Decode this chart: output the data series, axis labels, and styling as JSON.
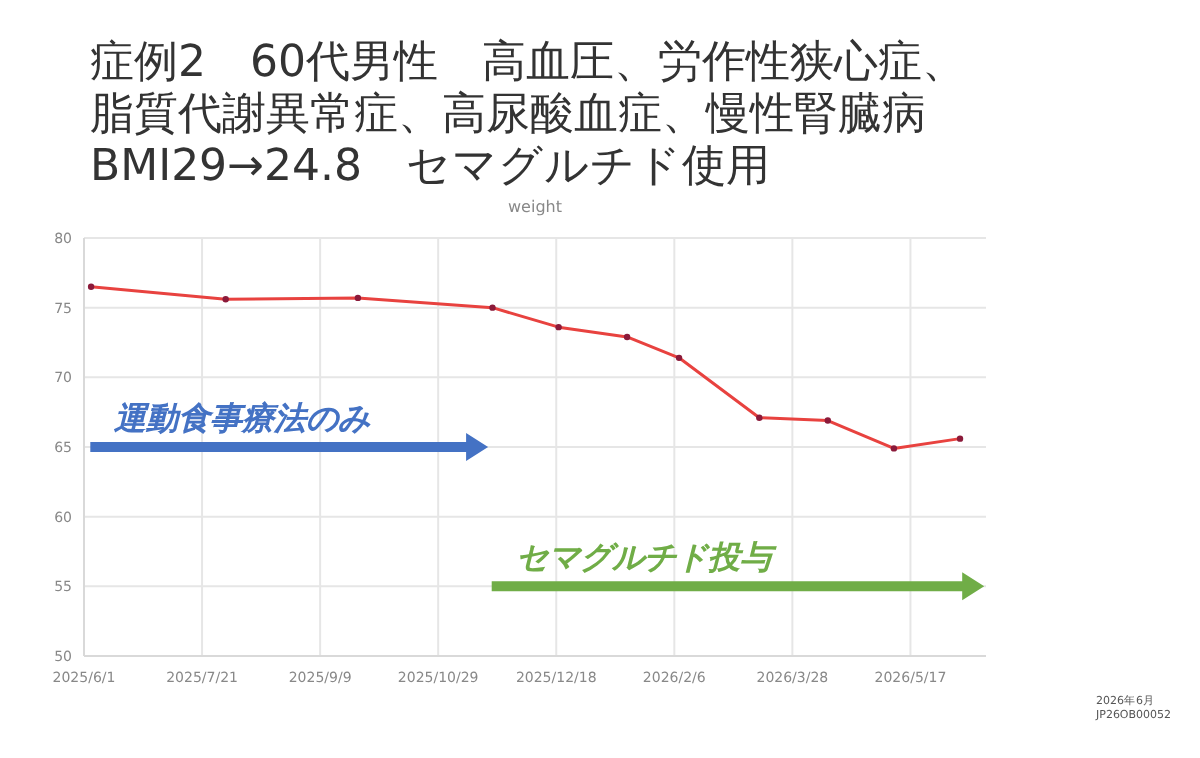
{
  "chart_data": {
    "type": "line",
    "title": "症例2　60代男性　高血圧、労作性狭心症、脂質代謝異常症、高尿酸血症、慢性腎臓病BMI29→24.8　セマグルチド使用",
    "subtitle": "weight",
    "x": [
      "2025-06-04",
      "2025-07-31",
      "2025-09-25",
      "2025-11-21",
      "2025-12-19",
      "2026-01-17",
      "2026-02-08",
      "2026-03-14",
      "2026-04-12",
      "2026-05-10",
      "2026-06-07"
    ],
    "series": [
      {
        "color": "#e8423f",
        "values": [
          76.5,
          75.6,
          75.7,
          75.0,
          73.6,
          72.9,
          71.4,
          67.1,
          66.9,
          64.9,
          65.6
        ]
      }
    ],
    "xlim": [
      "2025-06-01",
      "2026-06-18"
    ],
    "xticks": [
      {
        "value": "2025-06-01",
        "label": "2025/6/1"
      },
      {
        "value": "2025-07-21",
        "label": "2025/7/21"
      },
      {
        "value": "2025-09-09",
        "label": "2025/9/9"
      },
      {
        "value": "2025-10-29",
        "label": "2025/10/29"
      },
      {
        "value": "2025-12-18",
        "label": "2025/12/18"
      },
      {
        "value": "2026-02-06",
        "label": "2026/2/6"
      },
      {
        "value": "2026-03-28",
        "label": "2026/3/28"
      },
      {
        "value": "2026-05-17",
        "label": "2026/5/17"
      }
    ],
    "ylim": [
      50,
      80
    ],
    "yticks": [
      50,
      55,
      60,
      65,
      70,
      75,
      80
    ],
    "grid": true,
    "marker": "circle",
    "line_style": "solid",
    "annotations": [
      "運動食事療法のみ",
      "セマグルチド投与",
      "2026年6月\nJP26OB00052"
    ]
  }
}
